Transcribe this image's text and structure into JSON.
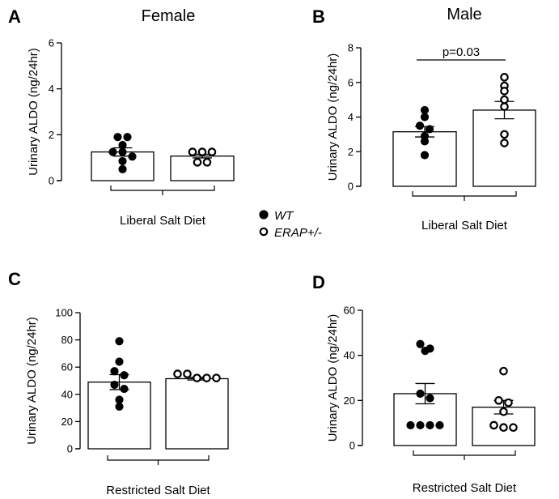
{
  "legend": {
    "items": [
      {
        "label": "WT",
        "marker": "filled-circle"
      },
      {
        "label": "ERAP+/-",
        "marker": "open-circle"
      }
    ]
  },
  "colors": {
    "bar_fill": "#ffffff",
    "stroke": "#000000",
    "text": "#000000"
  },
  "chart_data": [
    {
      "panel": "A",
      "type": "bar",
      "title": "Female",
      "ylabel": "Urinary ALDO (ng/24hr)",
      "xlabel": "Liberal Salt Diet",
      "ylim": [
        0,
        6
      ],
      "yticks": [
        0,
        2,
        4,
        6
      ],
      "categories": [
        "WT",
        "ERAP+/-"
      ],
      "series": [
        {
          "name": "WT",
          "mean": 1.25,
          "sem": 0.18,
          "points": [
            1.9,
            1.9,
            1.55,
            1.25,
            1.25,
            1.05,
            0.85,
            0.5
          ]
        },
        {
          "name": "ERAP+/-",
          "mean": 1.07,
          "sem": 0.08,
          "points": [
            1.25,
            1.25,
            1.25,
            0.8,
            0.8
          ]
        }
      ],
      "annotation": null
    },
    {
      "panel": "B",
      "type": "bar",
      "title": "Male",
      "ylabel": "Urinary ALDO (ng/24hr)",
      "xlabel": "Liberal Salt Diet",
      "ylim": [
        0,
        8
      ],
      "yticks": [
        0,
        2,
        4,
        6,
        8
      ],
      "categories": [
        "WT",
        "ERAP+/-"
      ],
      "series": [
        {
          "name": "WT",
          "mean": 3.15,
          "sem": 0.3,
          "points": [
            4.4,
            4.0,
            3.5,
            3.3,
            2.9,
            2.6,
            1.8
          ]
        },
        {
          "name": "ERAP+/-",
          "mean": 4.4,
          "sem": 0.5,
          "points": [
            6.3,
            5.8,
            5.5,
            5.0,
            4.6,
            3.0,
            2.5
          ]
        }
      ],
      "annotation": "p=0.03"
    },
    {
      "panel": "C",
      "type": "bar",
      "title": "",
      "ylabel": "Urinary ALDO (ng/24hr)",
      "xlabel": "Restricted Salt Diet",
      "ylim": [
        0,
        100
      ],
      "yticks": [
        0,
        20,
        40,
        60,
        80,
        100
      ],
      "categories": [
        "WT",
        "ERAP+/-"
      ],
      "series": [
        {
          "name": "WT",
          "mean": 49,
          "sem": 5.5,
          "points": [
            79,
            64,
            57,
            54,
            47,
            44,
            36,
            31
          ]
        },
        {
          "name": "ERAP+/-",
          "mean": 51.5,
          "sem": 1.0,
          "points": [
            55,
            55,
            52,
            52,
            52
          ]
        }
      ],
      "annotation": null
    },
    {
      "panel": "D",
      "type": "bar",
      "title": "",
      "ylabel": "Urinary ALDO (ng/24hr)",
      "xlabel": "Restricted Salt Diet",
      "ylim": [
        0,
        60
      ],
      "yticks": [
        0,
        20,
        40,
        60
      ],
      "categories": [
        "WT",
        "ERAP+/-"
      ],
      "series": [
        {
          "name": "WT",
          "mean": 23,
          "sem": 4.5,
          "points": [
            45,
            43,
            42,
            23,
            21,
            9,
            9,
            9,
            9
          ]
        },
        {
          "name": "ERAP+/-",
          "mean": 17,
          "sem": 3.0,
          "points": [
            33,
            20,
            19,
            15,
            9,
            8,
            8
          ]
        }
      ],
      "annotation": null
    }
  ]
}
